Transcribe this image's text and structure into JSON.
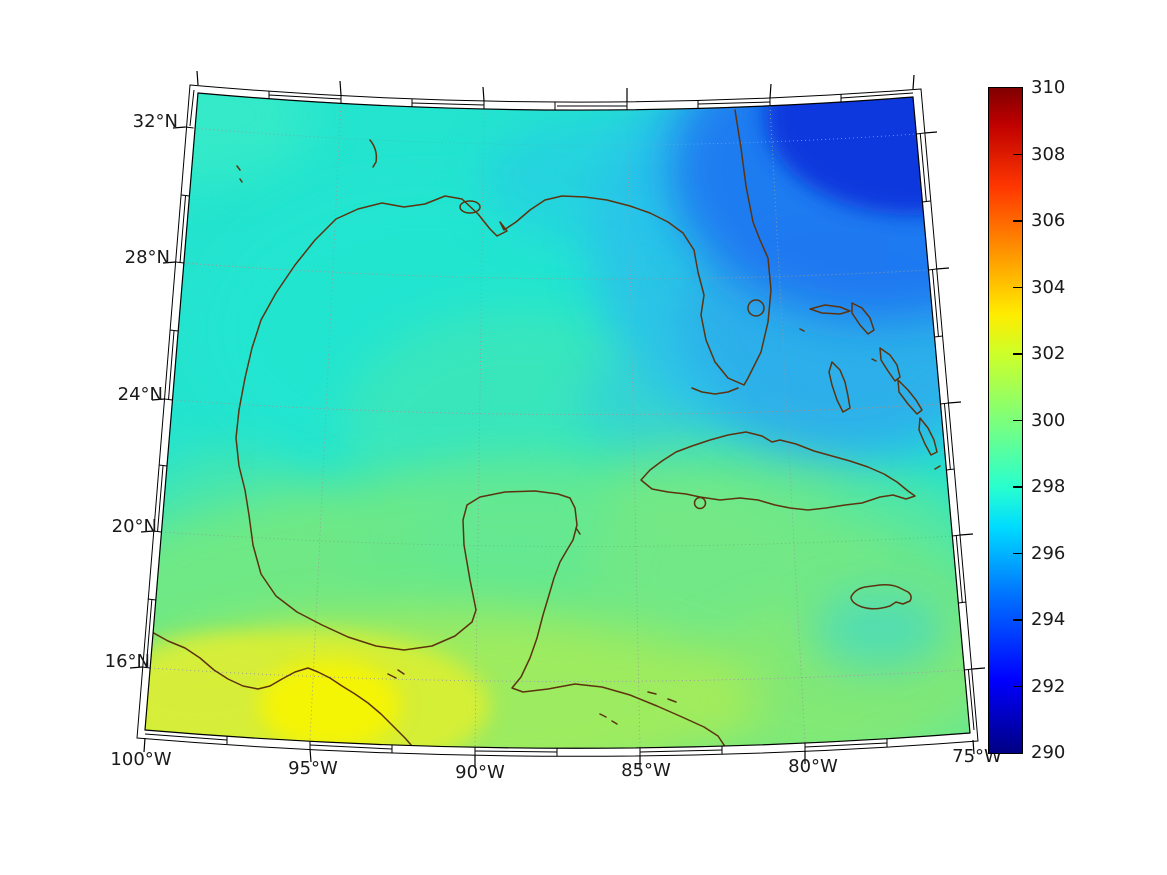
{
  "figure": {
    "background": "#ffffff",
    "type": "geographic temperature map with colorbar"
  },
  "map": {
    "description": "Smooth temperature field (K) over the Gulf of Mexico and western Caribbean drawn on a curved conic-style graticule with a fancy double-line neatline frame",
    "coastline_color": "#5C330E",
    "gridlines": {
      "style": "dotted",
      "color": "#999999",
      "meridians_deg_w": [
        95,
        90,
        85,
        80
      ],
      "parallels_deg_n": [
        32,
        28,
        24,
        20,
        16
      ]
    },
    "x_axis": {
      "ticks": [
        "100°W",
        "95°W",
        "90°W",
        "85°W",
        "80°W",
        "75°W"
      ]
    },
    "y_axis": {
      "ticks": [
        "32°N",
        "28°N",
        "24°N",
        "20°N",
        "16°N"
      ]
    }
  },
  "colorbar": {
    "min": 290,
    "max": 310,
    "tick_labels": [
      "310",
      "308",
      "306",
      "304",
      "302",
      "300",
      "298",
      "296",
      "294",
      "292",
      "290"
    ],
    "gradient_stops": [
      {
        "value": 290,
        "color": "#000083"
      },
      {
        "value": 292.2,
        "color": "#0000FF"
      },
      {
        "value": 294.8,
        "color": "#0075FF"
      },
      {
        "value": 296.8,
        "color": "#00DCFF"
      },
      {
        "value": 298,
        "color": "#29FFCE"
      },
      {
        "value": 300,
        "color": "#7CFF7B"
      },
      {
        "value": 302,
        "color": "#CDFF29"
      },
      {
        "value": 303.2,
        "color": "#FFEC00"
      },
      {
        "value": 305,
        "color": "#FF9700"
      },
      {
        "value": 307,
        "color": "#FF3800"
      },
      {
        "value": 308.9,
        "color": "#BF0000"
      },
      {
        "value": 310,
        "color": "#800000"
      }
    ]
  },
  "chart_data": {
    "type": "heatmap",
    "field": "temperature (K)",
    "colormap": "jet",
    "value_range": [
      290,
      310
    ],
    "lon_range_deg_w": [
      100,
      75
    ],
    "lat_range_deg_n": [
      14,
      33
    ],
    "legend_position": "right vertical colorbar",
    "approx_region_values_k": [
      {
        "region": "Gulf of Mexico interior",
        "value": 297.5
      },
      {
        "region": "Northwest Atlantic (top-right corner)",
        "value": 293
      },
      {
        "region": "East of Florida / Gulf Stream area",
        "value": 295
      },
      {
        "region": "Bahamas waters",
        "value": 296.5
      },
      {
        "region": "Straits of Florida and Cuban coast",
        "value": 298.5
      },
      {
        "region": "Western Caribbean",
        "value": 299
      },
      {
        "region": "Yucatan / Belize coast",
        "value": 299.5
      },
      {
        "region": "Bay of Campeche",
        "value": 299.5
      },
      {
        "region": "Southern Mexico / Pacific coast (bottom-left)",
        "value": 301.5
      },
      {
        "region": "Gulf of Tehuantepec warm spot",
        "value": 302
      }
    ]
  }
}
